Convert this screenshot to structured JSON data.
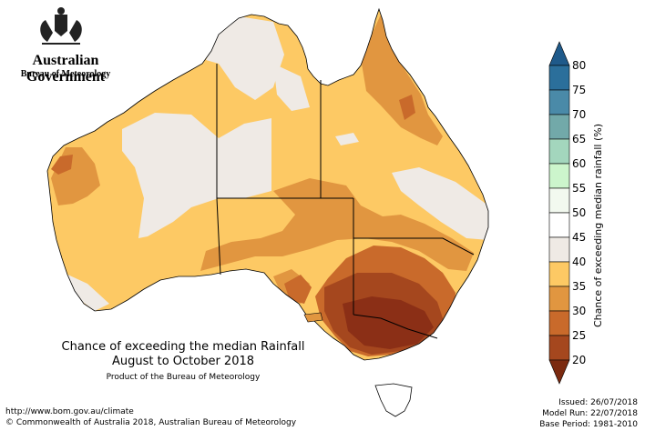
{
  "agency": {
    "government": "Australian Government",
    "bureau": "Bureau of Meteorology"
  },
  "title": {
    "line1": "Chance of exceeding the median Rainfall",
    "line2": "August to October 2018",
    "subtitle": "Product of the Bureau of Meteorology"
  },
  "footer": {
    "url": "http://www.bom.gov.au/climate",
    "copyright": "© Commonwealth of Australia 2018, Australian Bureau of Meteorology",
    "issued": "Issued: 26/07/2018",
    "model_run": "Model Run: 22/07/2018",
    "base_period": "Base Period: 1981-2010"
  },
  "legend": {
    "title": "Chance of exceeding median rainfall (%)",
    "ticks": [
      "80",
      "75",
      "70",
      "65",
      "60",
      "55",
      "50",
      "45",
      "40",
      "35",
      "30",
      "25",
      "20"
    ],
    "bins": [
      {
        "label": "75-80",
        "color": "#2b6f9b"
      },
      {
        "label": "70-75",
        "color": "#4a8aa8"
      },
      {
        "label": "65-70",
        "color": "#72a9a9"
      },
      {
        "label": "60-65",
        "color": "#a3d6bd"
      },
      {
        "label": "55-60",
        "color": "#ccf5cc"
      },
      {
        "label": "50-55",
        "color": "#f2f9ef"
      },
      {
        "label": "45-50",
        "color": "#ffffff"
      },
      {
        "label": "40-45",
        "color": "#efeae5"
      },
      {
        "label": "35-40",
        "color": "#fdc964"
      },
      {
        "label": "30-35",
        "color": "#e19640"
      },
      {
        "label": "25-30",
        "color": "#c96a2b"
      },
      {
        "label": "20-25",
        "color": "#a5471e"
      }
    ],
    "top_arrow_color": "#1f5a8a",
    "bottom_arrow_color": "#7b2a10"
  },
  "map_colors": {
    "outline": "#000000",
    "near_normal": "#efeae5",
    "light": "#fdc964",
    "medium": "#e19640",
    "dark": "#c96a2b",
    "darkest": "#a5471e",
    "deepest": "#8b2f16"
  }
}
